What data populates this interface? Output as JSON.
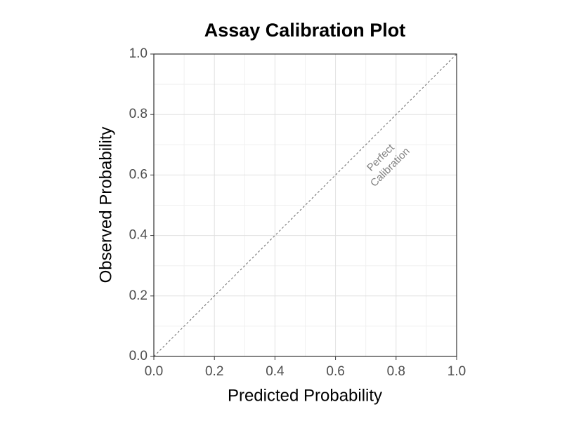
{
  "chart_data": {
    "type": "line",
    "title": "Assay Calibration Plot",
    "x_label": "Predicted Probability",
    "y_label": "Observed Probability",
    "xlim": [
      0,
      1
    ],
    "ylim": [
      0,
      1
    ],
    "xticks": [
      {
        "value": 0,
        "label": "0.0"
      },
      0.2,
      0.4,
      0.6,
      0.8,
      {
        "value": 1,
        "label": "1.0"
      }
    ],
    "yticks": [
      {
        "value": 0,
        "label": "0.0"
      },
      0.2,
      0.4,
      0.6,
      0.8,
      {
        "value": 1,
        "label": "1.0"
      }
    ],
    "grid": true,
    "series": [
      {
        "x": [
          0,
          1
        ],
        "values": [
          0,
          1
        ],
        "color": "#666666",
        "dashed": true
      }
    ],
    "annotation": [
      "Perfect",
      "Calibration"
    ]
  }
}
